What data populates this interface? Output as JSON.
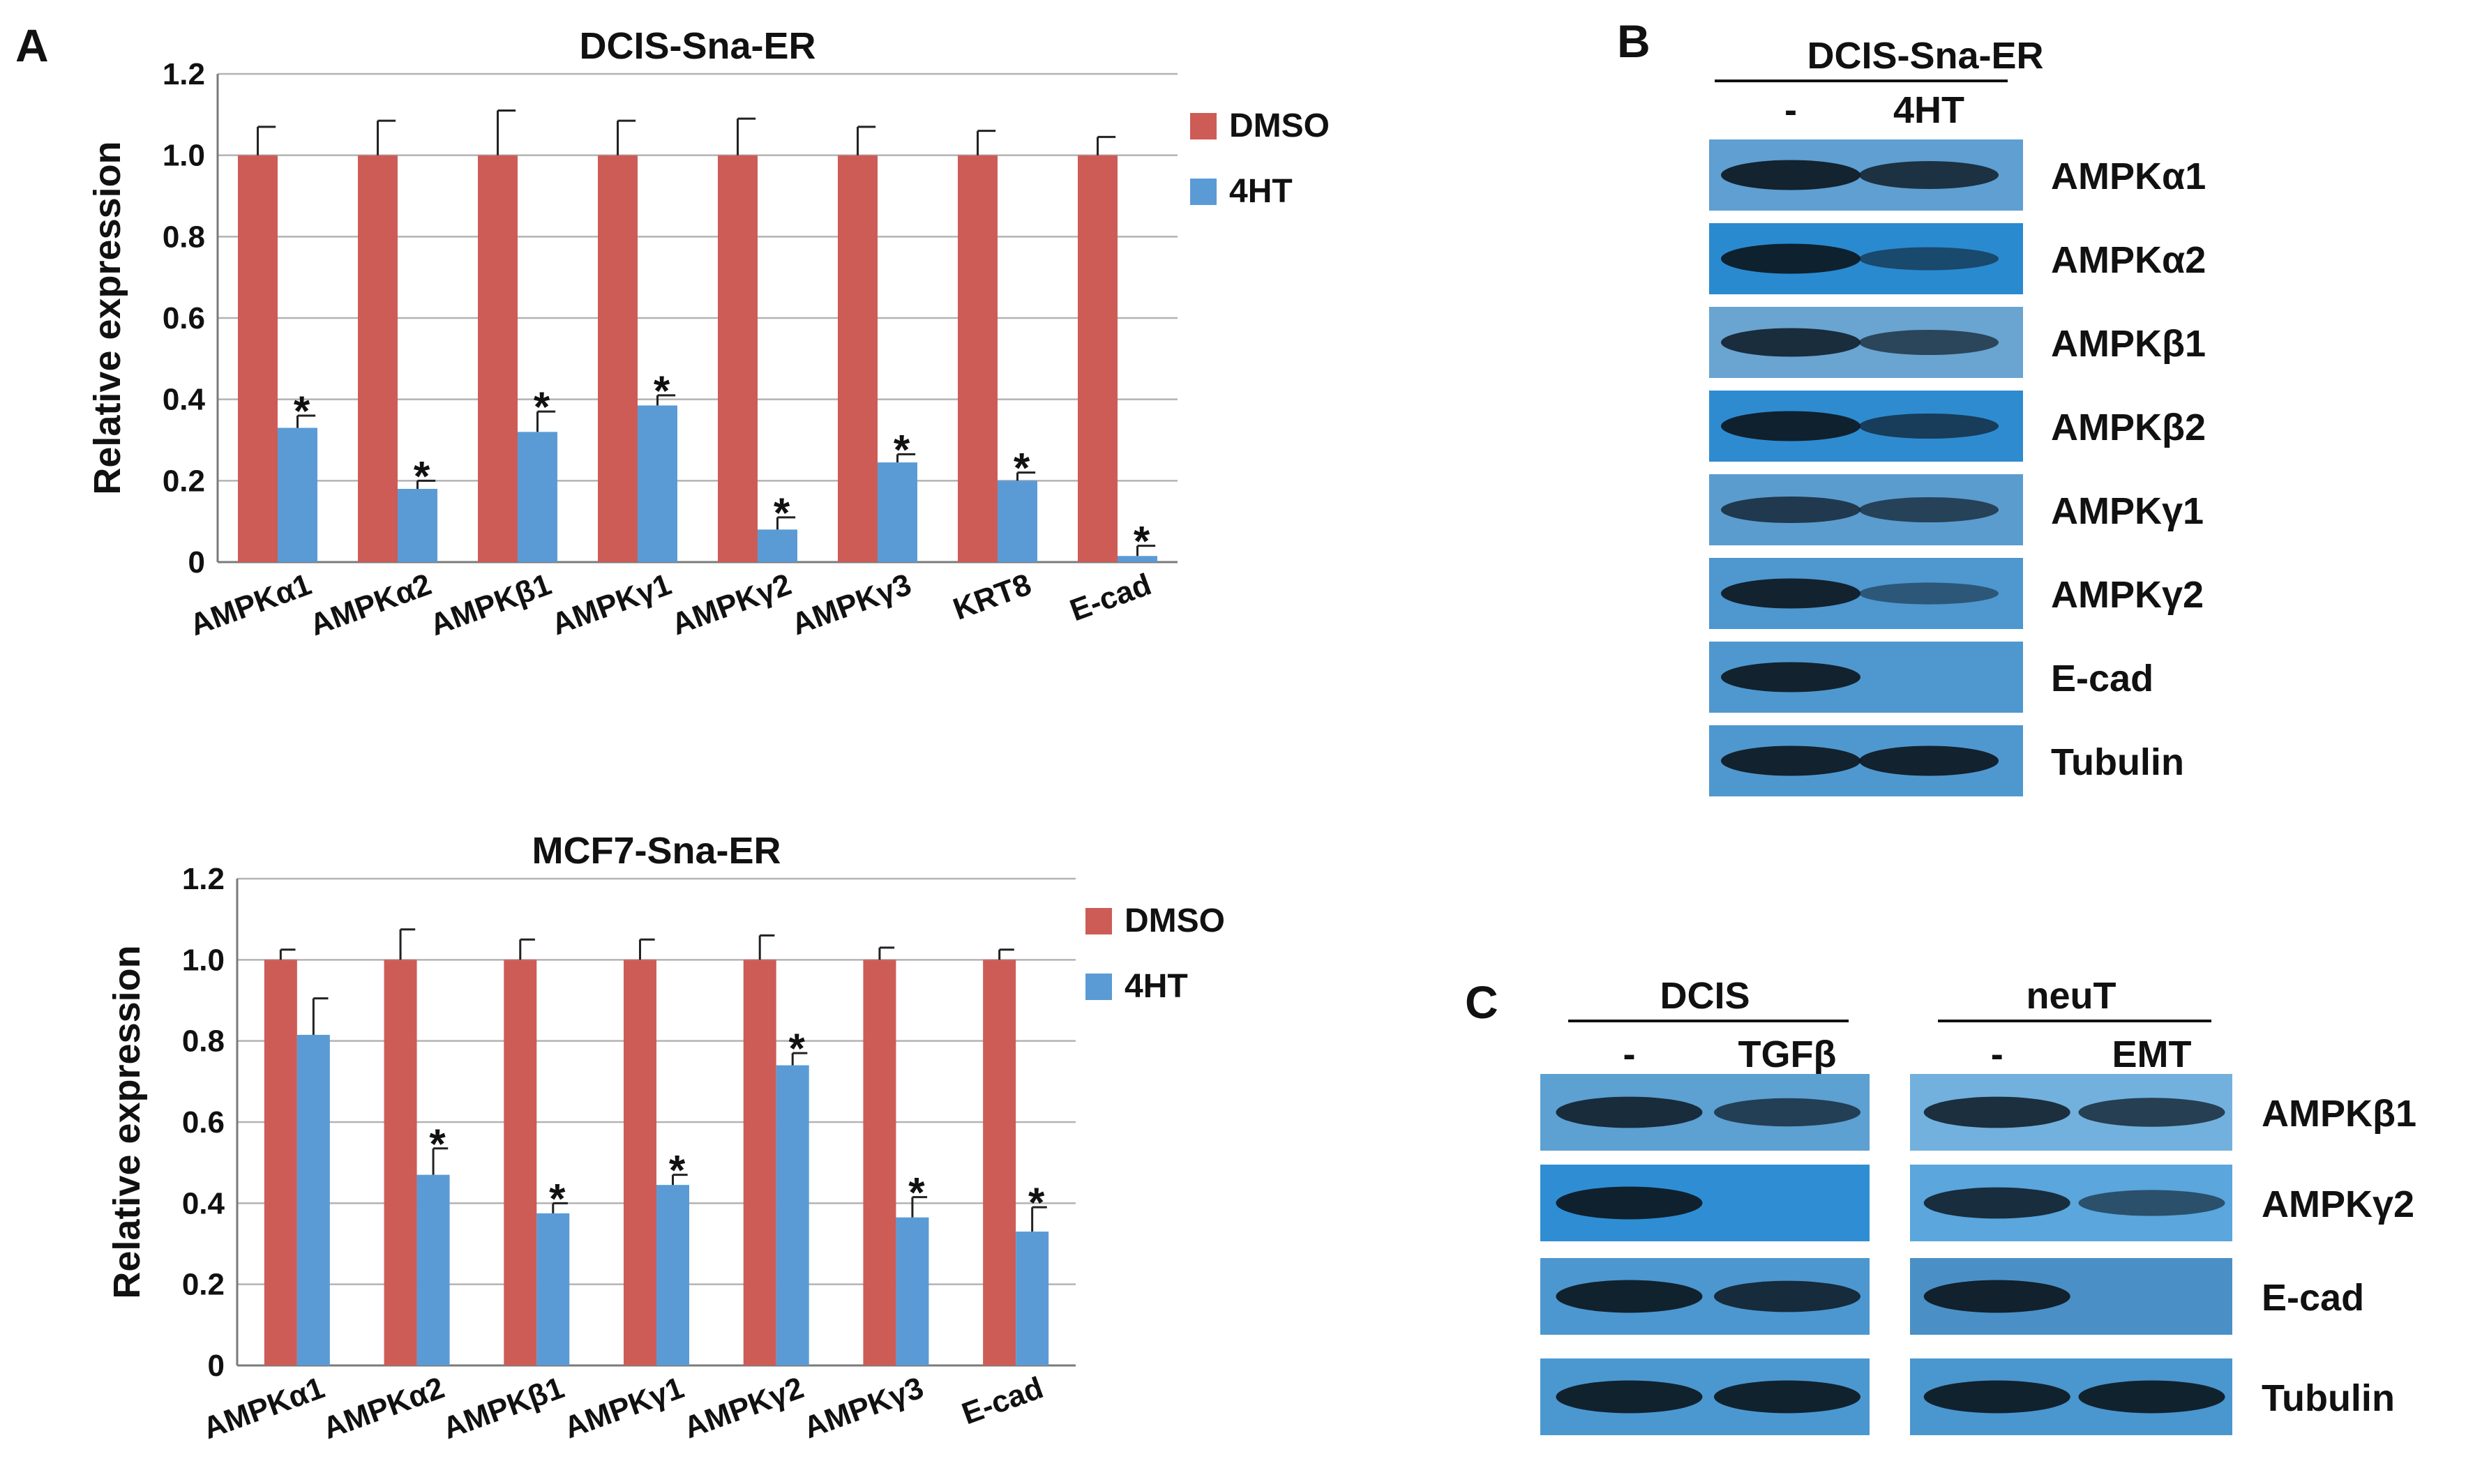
{
  "panels": {
    "A": "A",
    "B": "B",
    "C": "C"
  },
  "chart_data": [
    {
      "type": "bar",
      "title": "DCIS-Sna-ER",
      "xlabel": "",
      "ylabel": "Relative expression",
      "ylim": [
        0,
        1.2
      ],
      "yticks": [
        "0",
        "0.2",
        "0.4",
        "0.6",
        "0.8",
        "1.0",
        "1.2"
      ],
      "grid": true,
      "legend_position": "right",
      "categories": [
        "AMPKα1",
        "AMPKα2",
        "AMPKβ1",
        "AMPKγ1",
        "AMPKγ2",
        "AMPKγ3",
        "KRT8",
        "E-cad"
      ],
      "series": [
        {
          "name": "DMSO",
          "color": "#cd5c57",
          "values": [
            1.0,
            1.0,
            1.0,
            1.0,
            1.0,
            1.0,
            1.0,
            1.0
          ],
          "errors": [
            0.07,
            0.085,
            0.11,
            0.085,
            0.09,
            0.07,
            0.06,
            0.045
          ]
        },
        {
          "name": "4HT",
          "color": "#5b9bd5",
          "values": [
            0.33,
            0.18,
            0.32,
            0.385,
            0.08,
            0.245,
            0.2,
            0.015
          ],
          "errors": [
            0.03,
            0.02,
            0.05,
            0.025,
            0.03,
            0.02,
            0.02,
            0.025
          ],
          "significant": [
            true,
            true,
            true,
            true,
            true,
            true,
            true,
            true
          ]
        }
      ],
      "annotation": "*"
    },
    {
      "type": "bar",
      "title": "MCF7-Sna-ER",
      "xlabel": "",
      "ylabel": "Relative expression",
      "ylim": [
        0,
        1.2
      ],
      "yticks": [
        "0",
        "0.2",
        "0.4",
        "0.6",
        "0.8",
        "1.0",
        "1.2"
      ],
      "grid": true,
      "legend_position": "right",
      "categories": [
        "AMPKα1",
        "AMPKα2",
        "AMPKβ1",
        "AMPKγ1",
        "AMPKγ2",
        "AMPKγ3",
        "E-cad"
      ],
      "series": [
        {
          "name": "DMSO",
          "color": "#cd5c57",
          "values": [
            1.0,
            1.0,
            1.0,
            1.0,
            1.0,
            1.0,
            1.0
          ],
          "errors": [
            0.025,
            0.075,
            0.05,
            0.05,
            0.06,
            0.03,
            0.025
          ]
        },
        {
          "name": "4HT",
          "color": "#5b9bd5",
          "values": [
            0.815,
            0.47,
            0.375,
            0.445,
            0.74,
            0.365,
            0.33
          ],
          "errors": [
            0.09,
            0.065,
            0.025,
            0.025,
            0.03,
            0.05,
            0.06
          ],
          "significant": [
            false,
            true,
            true,
            true,
            true,
            true,
            true
          ]
        }
      ],
      "annotation": "*"
    }
  ],
  "blots": {
    "B": {
      "header": "DCIS-Sna-ER",
      "lanes": [
        "-",
        "4HT"
      ],
      "rows": [
        {
          "label": "AMPKα1",
          "bg": "#5f9fd1",
          "bands": [
            0.95,
            0.8
          ]
        },
        {
          "label": "AMPKα2",
          "bg": "#2a8ad0",
          "bands": [
            0.95,
            0.45
          ]
        },
        {
          "label": "AMPKβ1",
          "bg": "#6aa4d1",
          "bands": [
            0.85,
            0.6
          ]
        },
        {
          "label": "AMPKβ2",
          "bg": "#2f8bd0",
          "bands": [
            0.95,
            0.6
          ]
        },
        {
          "label": "AMPKγ1",
          "bg": "#5b9ccf",
          "bands": [
            0.7,
            0.6
          ]
        },
        {
          "label": "AMPKγ2",
          "bg": "#4e97cf",
          "bands": [
            0.95,
            0.35
          ]
        },
        {
          "label": "E-cad",
          "bg": "#4f98cf",
          "bands": [
            0.95,
            0.0
          ]
        },
        {
          "label": "Tubulin",
          "bg": "#4f98cf",
          "bands": [
            0.95,
            0.95
          ]
        }
      ]
    },
    "C": {
      "groups": [
        {
          "header": "DCIS",
          "lanes": [
            "-",
            "TGFβ"
          ]
        },
        {
          "header": "neuT",
          "lanes": [
            "-",
            "EMT"
          ]
        }
      ],
      "rows": [
        {
          "label": "AMPKβ1",
          "bg": [
            "#5da0d2",
            "#72b1de"
          ],
          "bands": [
            [
              0.85,
              0.65
            ],
            [
              0.85,
              0.7
            ]
          ]
        },
        {
          "label": "AMPKγ2",
          "bg": [
            "#2f8ed3",
            "#5aa6dd"
          ],
          "bands": [
            [
              0.95,
              0.0
            ],
            [
              0.85,
              0.5
            ]
          ]
        },
        {
          "label": "E-cad",
          "bg": [
            "#4c97cf",
            "#4a90c6"
          ],
          "bands": [
            [
              0.95,
              0.85
            ],
            [
              0.95,
              0.0
            ]
          ]
        },
        {
          "label": "Tubulin",
          "bg": [
            "#4b98d1",
            "#4a96cf"
          ],
          "bands": [
            [
              0.95,
              0.95
            ],
            [
              0.95,
              0.95
            ]
          ]
        }
      ]
    }
  }
}
